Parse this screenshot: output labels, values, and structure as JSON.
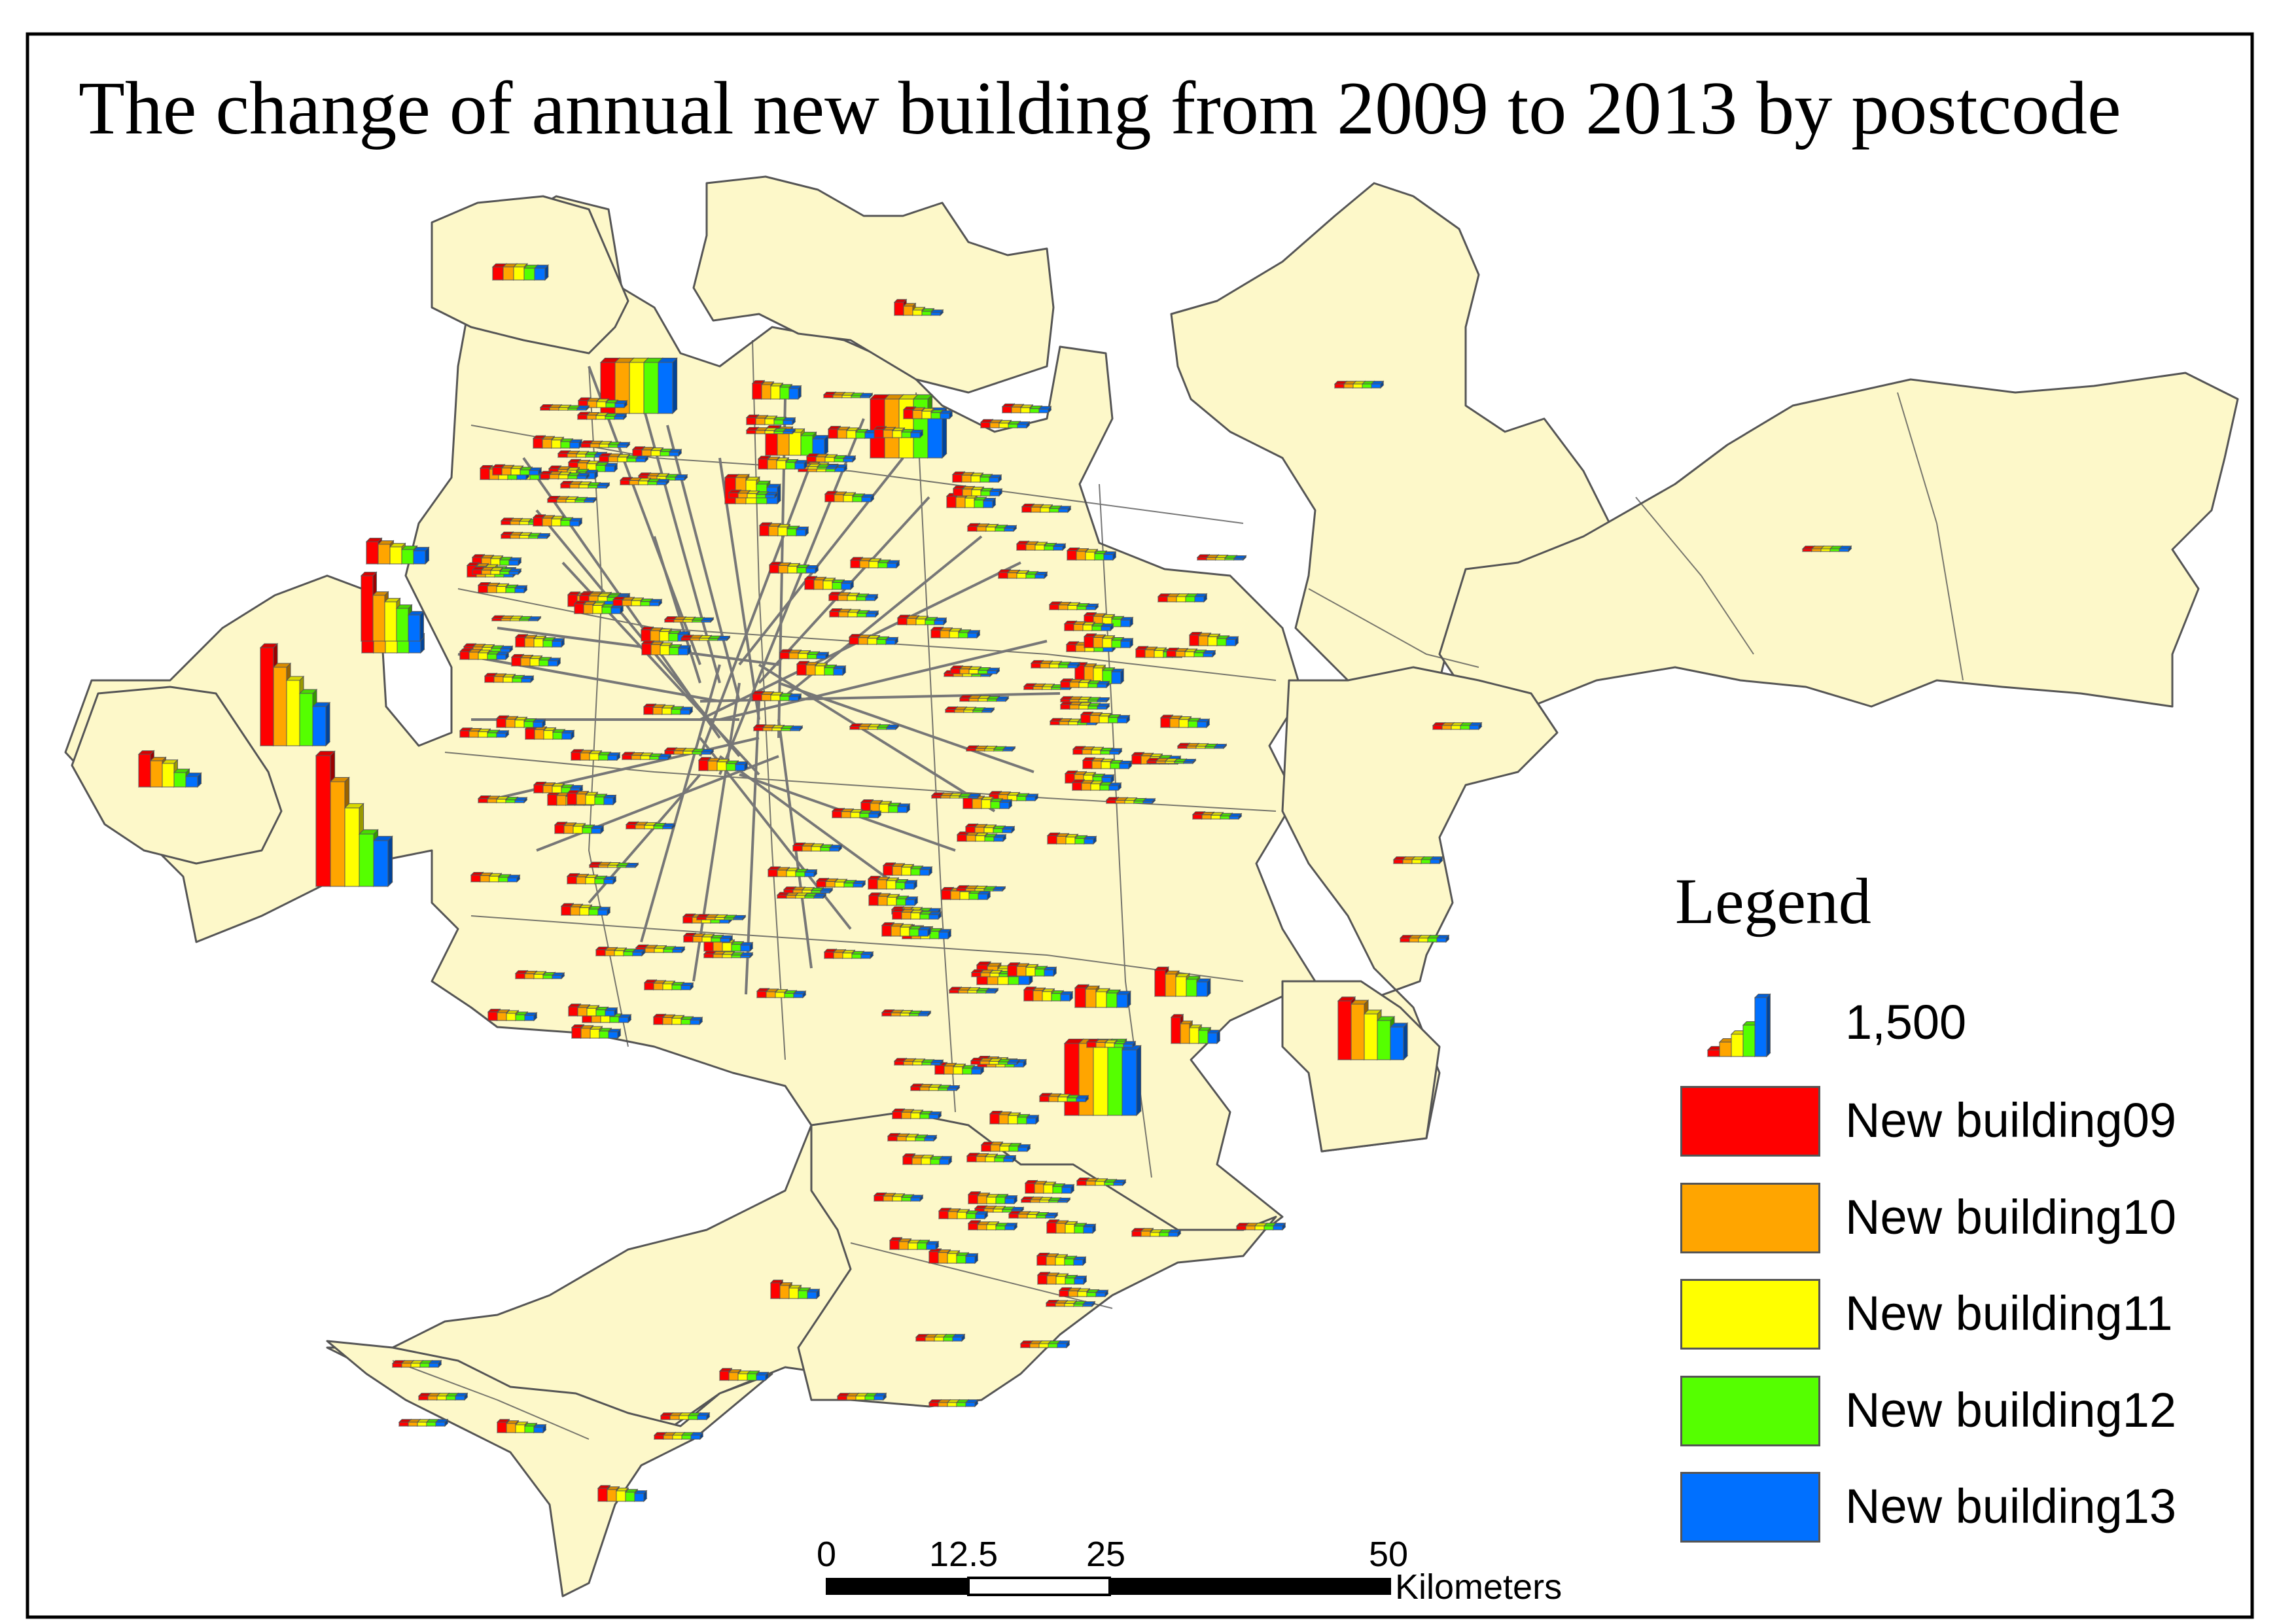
{
  "map": {
    "title": "The change of annual new building from 2009 to 2013 by postcode",
    "background_color": "#ffffff",
    "land_color": "#fdf8c9",
    "boundary_color": "#555555",
    "leader_line_color": "#777777"
  },
  "legend": {
    "title": "Legend",
    "size_reference": {
      "label": "1,500",
      "value": 1500
    },
    "items": [
      {
        "label": "New building09",
        "color": "#ff0000"
      },
      {
        "label": "New building10",
        "color": "#ffa500"
      },
      {
        "label": "New building11",
        "color": "#ffff00"
      },
      {
        "label": "New building12",
        "color": "#55ff00"
      },
      {
        "label": "New building13",
        "color": "#0070ff"
      }
    ]
  },
  "scale_bar": {
    "ticks": [
      "0",
      "12.5",
      "25",
      "50"
    ],
    "unit": "Kilometers"
  },
  "symbol": {
    "type": "3d-bar-chart",
    "series": [
      "New building09",
      "New building10",
      "New building11",
      "New building12",
      "New building13"
    ]
  }
}
